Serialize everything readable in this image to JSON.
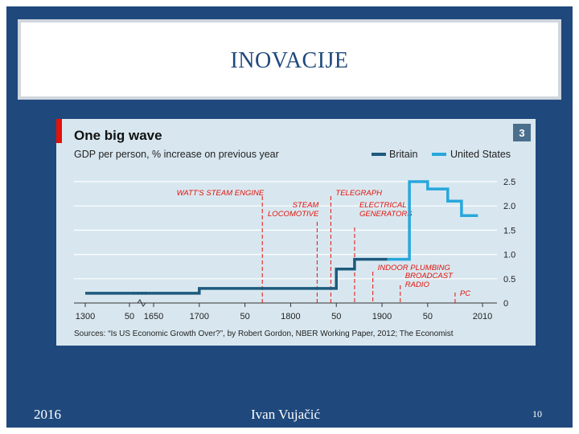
{
  "slide": {
    "title": "INOVACIJE",
    "footer_year": "2016",
    "footer_author": "Ivan Vujačić",
    "page_number": "10"
  },
  "colors": {
    "background": "#1f497d",
    "britain": "#1d5a7d",
    "united_states": "#27a7dc",
    "accent_red": "#e3120b",
    "card": "#d8e7ef"
  },
  "chart_data": {
    "type": "line",
    "title": "One big wave",
    "subtitle": "GDP per person, % increase on previous year",
    "badge": "3",
    "source": "Sources: “Is US Economic Growth Over?”, by Robert Gordon, NBER Working Paper, 2012; The Economist",
    "ylim": [
      0,
      2.5
    ],
    "y_ticks": [
      "2.5",
      "2.0",
      "1.5",
      "1.0",
      "0.5",
      "0"
    ],
    "x_ticks": [
      "1300",
      "50",
      "1650",
      "1700",
      "50",
      "1800",
      "50",
      "1900",
      "50",
      "2010"
    ],
    "axis_break_note": "axis break between 1350 and 1650",
    "series": [
      {
        "name": "Britain",
        "color": "#1d5a7d",
        "points": [
          [
            1300,
            0.2
          ],
          [
            1350,
            0.2
          ],
          [
            1650,
            0.2
          ],
          [
            1700,
            0.2
          ],
          [
            1700,
            0.3
          ],
          [
            1850,
            0.3
          ],
          [
            1850,
            0.7
          ],
          [
            1870,
            0.7
          ],
          [
            1870,
            0.9
          ],
          [
            1906,
            0.9
          ]
        ],
        "dotted_segment": [
          [
            1350,
            0.2
          ],
          [
            1380,
            0.2
          ]
        ]
      },
      {
        "name": "United States",
        "color": "#27a7dc",
        "points": [
          [
            1906,
            0.9
          ],
          [
            1930,
            0.9
          ],
          [
            1930,
            2.5
          ],
          [
            1950,
            2.5
          ],
          [
            1950,
            2.35
          ],
          [
            1972,
            2.35
          ],
          [
            1972,
            2.1
          ],
          [
            1987,
            2.1
          ],
          [
            1987,
            1.8
          ],
          [
            2005,
            1.8
          ]
        ]
      }
    ],
    "annotations": [
      {
        "label": "WATT'S STEAM ENGINE",
        "x": 1769
      },
      {
        "label": "TELEGRAPH",
        "x": 1844
      },
      {
        "label_lines": [
          "STEAM",
          "LOCOMOTIVE"
        ],
        "x": 1829
      },
      {
        "label_lines": [
          "ELECTRICAL",
          "GENERATORS"
        ],
        "x": 1870
      },
      {
        "label": "INDOOR PLUMBING",
        "x": 1890
      },
      {
        "label_lines": [
          "BROADCAST",
          "RADIO"
        ],
        "x": 1920
      },
      {
        "label": "PC",
        "x": 1980
      }
    ]
  }
}
